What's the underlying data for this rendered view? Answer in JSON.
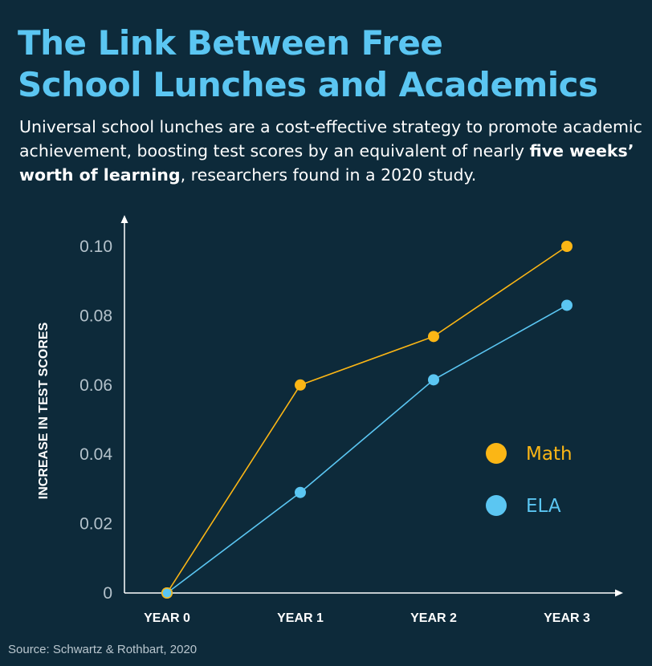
{
  "title": {
    "line1": "The Link Between Free",
    "line2": "School Lunches and Academics"
  },
  "subtitle": {
    "part1": "Universal school lunches are a cost-effective strategy to promote academic achievement, boosting test scores by an equivalent of nearly ",
    "bold": "five weeks’ worth of learning",
    "part2": ", researchers found in a 2020 study."
  },
  "source": "Source: Schwartz & Rothbart, 2020",
  "colors": {
    "background": "#0d2a3a",
    "title": "#5bc6f2",
    "math": "#fbb615",
    "ela": "#5bc6f2"
  },
  "chart_data": {
    "type": "line",
    "title": "",
    "xlabel": "",
    "ylabel": "INCREASE IN TEST SCORES",
    "categories": [
      "YEAR 0",
      "YEAR 1",
      "YEAR 2",
      "YEAR 3"
    ],
    "y_ticks": [
      "0",
      "0.02",
      "0.04",
      "0.06",
      "0.08",
      "0.10"
    ],
    "y_tick_values": [
      0,
      0.02,
      0.04,
      0.06,
      0.08,
      0.1
    ],
    "ylim": [
      0,
      0.1
    ],
    "grid": false,
    "legend_position": "right",
    "series": [
      {
        "name": "Math",
        "color": "#fbb615",
        "values": [
          0,
          0.06,
          0.074,
          0.1
        ]
      },
      {
        "name": "ELA",
        "color": "#5bc6f2",
        "values": [
          0,
          0.029,
          0.0615,
          0.083
        ]
      }
    ]
  }
}
